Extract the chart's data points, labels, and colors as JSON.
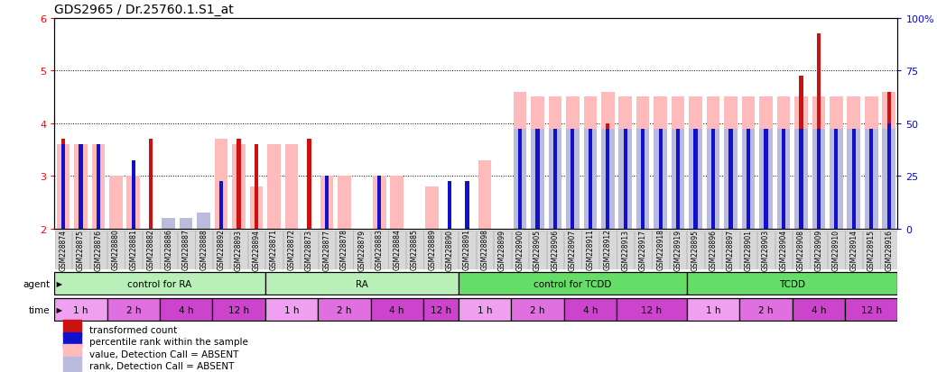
{
  "title": "GDS2965 / Dr.25760.1.S1_at",
  "samples": [
    "GSM228874",
    "GSM228875",
    "GSM228876",
    "GSM228880",
    "GSM228881",
    "GSM228882",
    "GSM228886",
    "GSM228887",
    "GSM228888",
    "GSM228892",
    "GSM228893",
    "GSM228894",
    "GSM228871",
    "GSM228872",
    "GSM228873",
    "GSM228877",
    "GSM228878",
    "GSM228879",
    "GSM228883",
    "GSM228884",
    "GSM228885",
    "GSM228889",
    "GSM228890",
    "GSM228891",
    "GSM228898",
    "GSM228899",
    "GSM228900",
    "GSM228905",
    "GSM228906",
    "GSM228907",
    "GSM228911",
    "GSM228912",
    "GSM228913",
    "GSM228917",
    "GSM228918",
    "GSM228919",
    "GSM228895",
    "GSM228896",
    "GSM228897",
    "GSM228901",
    "GSM228903",
    "GSM228904",
    "GSM228908",
    "GSM228909",
    "GSM228910",
    "GSM228914",
    "GSM228915",
    "GSM228916"
  ],
  "red_values": [
    3.7,
    3.6,
    null,
    null,
    null,
    3.7,
    null,
    null,
    null,
    2.8,
    3.7,
    3.6,
    null,
    null,
    3.7,
    null,
    null,
    null,
    3.0,
    null,
    null,
    null,
    2.8,
    null,
    null,
    null,
    3.9,
    3.9,
    3.9,
    3.9,
    3.9,
    4.0,
    3.9,
    3.9,
    3.9,
    3.9,
    3.9,
    3.9,
    3.9,
    3.9,
    3.9,
    3.9,
    4.9,
    5.7,
    3.9,
    3.9,
    3.9,
    4.6
  ],
  "blue_values": [
    3.6,
    3.6,
    3.6,
    null,
    3.3,
    null,
    null,
    null,
    null,
    2.9,
    null,
    null,
    null,
    null,
    null,
    3.0,
    null,
    null,
    3.0,
    null,
    null,
    null,
    2.9,
    2.9,
    null,
    null,
    3.9,
    3.9,
    3.9,
    3.9,
    3.9,
    3.9,
    3.9,
    3.9,
    3.9,
    3.9,
    3.9,
    3.9,
    3.9,
    3.9,
    3.9,
    3.9,
    3.9,
    3.9,
    3.9,
    3.9,
    3.9,
    4.0
  ],
  "pink_values": [
    3.6,
    3.6,
    3.6,
    3.0,
    3.0,
    null,
    2.2,
    2.2,
    2.3,
    3.7,
    3.6,
    2.8,
    3.6,
    3.6,
    null,
    3.0,
    3.0,
    null,
    3.0,
    3.0,
    null,
    2.8,
    null,
    null,
    3.3,
    null,
    4.6,
    4.5,
    4.5,
    4.5,
    4.5,
    4.6,
    4.5,
    4.5,
    4.5,
    4.5,
    4.5,
    4.5,
    4.5,
    4.5,
    4.5,
    4.5,
    4.5,
    4.5,
    4.5,
    4.5,
    4.5,
    4.6
  ],
  "lightblue_values": [
    null,
    null,
    null,
    null,
    null,
    null,
    2.2,
    2.2,
    2.3,
    null,
    null,
    null,
    null,
    null,
    null,
    null,
    null,
    null,
    null,
    null,
    null,
    null,
    null,
    null,
    null,
    null,
    3.9,
    3.9,
    3.9,
    3.9,
    3.9,
    3.9,
    3.9,
    3.9,
    3.9,
    3.9,
    3.9,
    3.9,
    3.9,
    3.9,
    3.9,
    3.9,
    3.9,
    3.9,
    3.9,
    3.9,
    3.9,
    3.9
  ],
  "agent_groups": [
    {
      "label": "control for RA",
      "start": 0,
      "end": 12,
      "color": "#b8f0b8"
    },
    {
      "label": "RA",
      "start": 12,
      "end": 23,
      "color": "#b8f0b8"
    },
    {
      "label": "control for TCDD",
      "start": 23,
      "end": 36,
      "color": "#66dd66"
    },
    {
      "label": "TCDD",
      "start": 36,
      "end": 48,
      "color": "#66dd66"
    }
  ],
  "time_groups": [
    {
      "label": "1 h",
      "start": 0,
      "end": 3,
      "color": "#f0a0f0"
    },
    {
      "label": "2 h",
      "start": 3,
      "end": 6,
      "color": "#e070e0"
    },
    {
      "label": "4 h",
      "start": 6,
      "end": 9,
      "color": "#cc44cc"
    },
    {
      "label": "12 h",
      "start": 9,
      "end": 12,
      "color": "#cc44cc"
    },
    {
      "label": "1 h",
      "start": 12,
      "end": 15,
      "color": "#f0a0f0"
    },
    {
      "label": "2 h",
      "start": 15,
      "end": 18,
      "color": "#e070e0"
    },
    {
      "label": "4 h",
      "start": 18,
      "end": 21,
      "color": "#cc44cc"
    },
    {
      "label": "12 h",
      "start": 21,
      "end": 23,
      "color": "#cc44cc"
    },
    {
      "label": "1 h",
      "start": 23,
      "end": 26,
      "color": "#f0a0f0"
    },
    {
      "label": "2 h",
      "start": 26,
      "end": 29,
      "color": "#e070e0"
    },
    {
      "label": "4 h",
      "start": 29,
      "end": 32,
      "color": "#cc44cc"
    },
    {
      "label": "12 h",
      "start": 32,
      "end": 36,
      "color": "#cc44cc"
    },
    {
      "label": "1 h",
      "start": 36,
      "end": 39,
      "color": "#f0a0f0"
    },
    {
      "label": "2 h",
      "start": 39,
      "end": 42,
      "color": "#e070e0"
    },
    {
      "label": "4 h",
      "start": 42,
      "end": 45,
      "color": "#cc44cc"
    },
    {
      "label": "12 h",
      "start": 45,
      "end": 48,
      "color": "#cc44cc"
    }
  ],
  "ylim_left": [
    2,
    6
  ],
  "yticks_left": [
    2,
    3,
    4,
    5,
    6
  ],
  "ylim_right": [
    0,
    100
  ],
  "yticks_right": [
    0,
    25,
    50,
    75,
    100
  ],
  "yticklabels_right": [
    "0",
    "25",
    "50",
    "75",
    "100%"
  ],
  "red_color": "#cc1111",
  "blue_color": "#1111cc",
  "pink_color": "#ffbbbb",
  "lightblue_color": "#bbbbdd",
  "title_fontsize": 10,
  "sample_fontsize": 5.5,
  "row_fontsize": 7.5,
  "legend_items": [
    {
      "color": "#cc1111",
      "label": "transformed count"
    },
    {
      "color": "#1111cc",
      "label": "percentile rank within the sample"
    },
    {
      "color": "#ffbbbb",
      "label": "value, Detection Call = ABSENT"
    },
    {
      "color": "#bbbbdd",
      "label": "rank, Detection Call = ABSENT"
    }
  ]
}
